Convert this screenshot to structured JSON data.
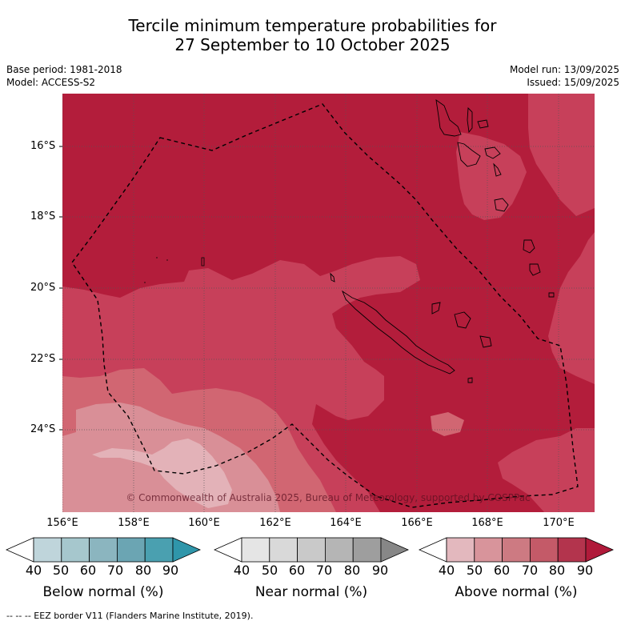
{
  "header": {
    "title_line1": "Tercile minimum temperature probabilities for",
    "title_line2": "27 September to 10 October 2025",
    "base_period": "Base period: 1981-2018",
    "model": "Model: ACCESS-S2",
    "model_run": "Model run: 13/09/2025",
    "issued": "Issued: 15/09/2025"
  },
  "map": {
    "lat_labels": [
      "16°S",
      "18°S",
      "20°S",
      "22°S",
      "24°S"
    ],
    "lon_labels": [
      "156°E",
      "158°E",
      "160°E",
      "162°E",
      "164°E",
      "166°E",
      "168°E",
      "170°E"
    ],
    "copyright": "© Commonwealth of Australia 2025, Bureau of Meteorology, supported by COSPPac",
    "colors": {
      "above_80_90": "#b31d3b",
      "above_70_80": "#c7405a",
      "above_60_70": "#d16672",
      "above_50_60": "#d98f97",
      "above_40_50": "#e3b2b8"
    }
  },
  "legend": {
    "ticks": [
      "40",
      "50",
      "60",
      "70",
      "80",
      "90"
    ],
    "below": {
      "label": "Below normal (%)",
      "colors": [
        "#bfd5db",
        "#a6c7cd",
        "#8bb5bf",
        "#6ba5b3",
        "#4aa0b0",
        "#2f96aa"
      ]
    },
    "near": {
      "label": "Near normal (%)",
      "colors": [
        "#e5e5e5",
        "#d9d9d9",
        "#c9c9c9",
        "#b5b5b5",
        "#9e9e9e",
        "#878787"
      ]
    },
    "above": {
      "label": "Above normal (%)",
      "colors": [
        "#e3b8be",
        "#d8949b",
        "#cd7a82",
        "#c45a68",
        "#b3344d",
        "#b01a3a"
      ]
    }
  },
  "footer": {
    "eez_note": "--  --  -- EEZ border V11 (Flanders Marine Institute, 2019)."
  }
}
